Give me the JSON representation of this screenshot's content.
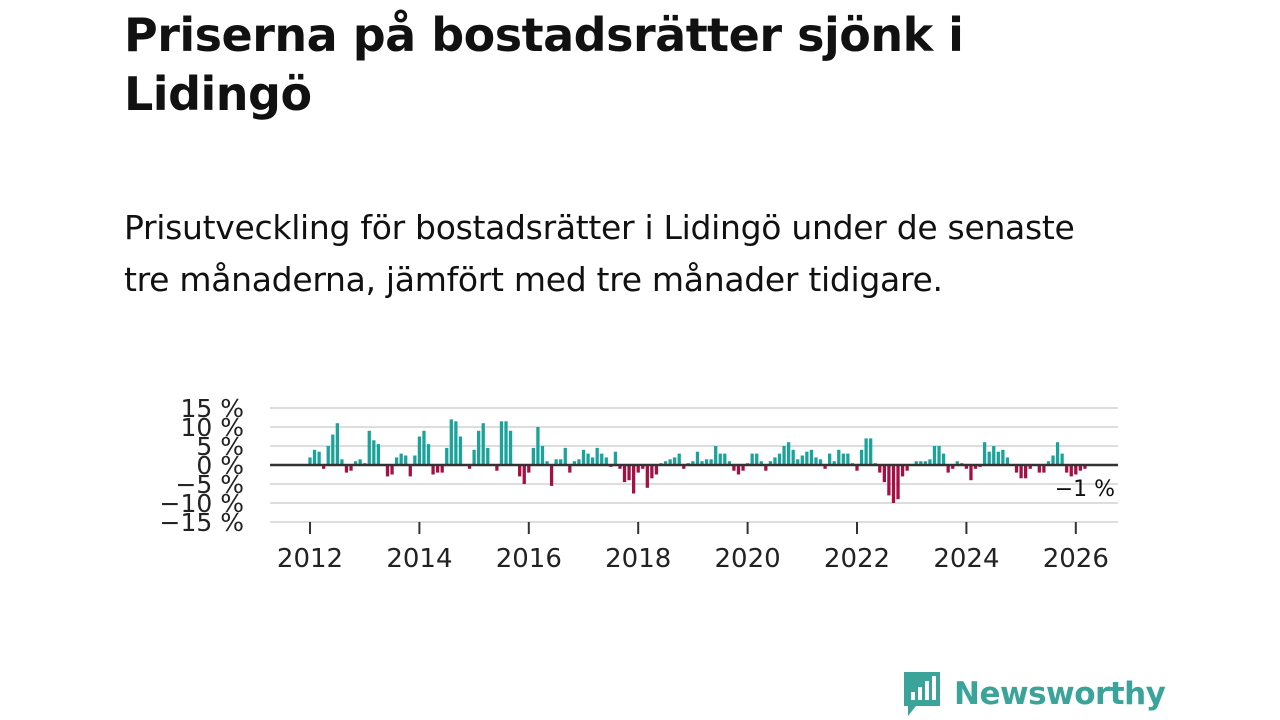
{
  "header": {
    "title": "Priserna på bostadsrätter sjönk i Lidingö",
    "subtitle": "Prisutveckling för bostadsrätter i Lidingö under de senaste tre månaderna, jämfört med tre månader tidigare."
  },
  "brand": {
    "name": "Newsworthy"
  },
  "colors": {
    "positive": "#1aa39a",
    "negative": "#a50f44",
    "grid": "#dddddd",
    "zero": "#333333",
    "brand": "#3aa39a"
  },
  "chart_data": {
    "type": "bar",
    "title": "Priserna på bostadsrätter sjönk i Lidingö",
    "xlabel": "",
    "ylabel": "",
    "unit": "%",
    "grid": true,
    "ylim": [
      -15,
      15
    ],
    "y_ticks": [
      15,
      10,
      5,
      0,
      -5,
      -10,
      -15
    ],
    "y_tick_labels": [
      "15 %",
      "10 %",
      "5 %",
      "0 %",
      "−5 %",
      "−10 %",
      "−15 %"
    ],
    "x_ticks": [
      2012,
      2014,
      2016,
      2018,
      2020,
      2022,
      2024,
      2026
    ],
    "x_tick_labels": [
      "2012",
      "2014",
      "2016",
      "2018",
      "2020",
      "2022",
      "2024",
      "2026"
    ],
    "x_start": 2012.0,
    "step_months": 1,
    "last_label": "−1 %",
    "series": [
      {
        "name": "Prisutveckling",
        "values": [
          2,
          4,
          3.5,
          -1,
          5,
          8,
          11,
          1.5,
          -2,
          -1.5,
          1,
          1.5,
          0.5,
          9,
          6.5,
          5.5,
          0,
          -3,
          -2.5,
          2,
          3,
          2.5,
          -3,
          2.5,
          7.5,
          9,
          5.5,
          -2.5,
          -2,
          -2,
          4.5,
          12,
          11.5,
          7.5,
          0,
          -1,
          4,
          9,
          11,
          4.5,
          0,
          -1.5,
          11.5,
          11.5,
          9,
          0,
          -3,
          -5,
          -2,
          4.5,
          10,
          5,
          1,
          -5.5,
          1.5,
          1.5,
          4.5,
          -2,
          1,
          1.5,
          4,
          3,
          2,
          4.5,
          3,
          2,
          -0.5,
          3.5,
          -1,
          -4.5,
          -4,
          -7.5,
          -2,
          -1,
          -6,
          -3.5,
          -2.5,
          0.5,
          1,
          1.5,
          2,
          3,
          -1,
          0.5,
          1,
          3.5,
          1,
          1.5,
          1.5,
          5,
          3,
          3,
          1,
          -1.5,
          -2.5,
          -1.5,
          0.5,
          3,
          3,
          1,
          -1.5,
          1,
          2,
          3,
          5,
          6,
          4,
          1.5,
          2.5,
          3.5,
          4,
          2,
          1.5,
          -1,
          3,
          1,
          4,
          3,
          3,
          0.5,
          -1.5,
          4,
          7,
          7,
          0.5,
          -2,
          -4.5,
          -8,
          -10,
          -9,
          -3,
          -1.5,
          0,
          1,
          1,
          1,
          1.5,
          5,
          5,
          3,
          -2,
          -1,
          1,
          0.5,
          -1,
          -4,
          -1,
          -0.5,
          6,
          3.5,
          5,
          3.5,
          4,
          2,
          0,
          -2,
          -3.5,
          -3.5,
          -1,
          0,
          -2,
          -2,
          1,
          2.5,
          6,
          3,
          -2,
          -3,
          -2.5,
          -1.5,
          -1
        ]
      }
    ]
  }
}
